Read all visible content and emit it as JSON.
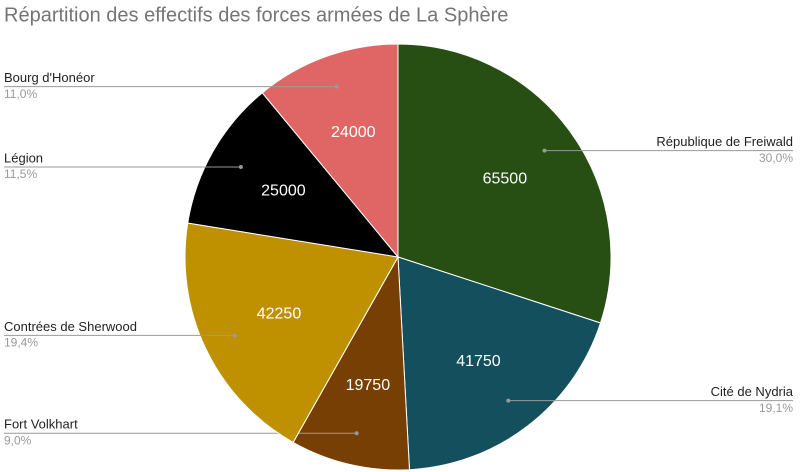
{
  "chart_data": {
    "type": "pie",
    "title": "Répartition des effectifs des forces armées de La Sphère",
    "categories": [
      "République de Freiwald",
      "Cité de Nydria",
      "Fort Volkhart",
      "Contrées de Sherwood",
      "Légion",
      "Bourg d'Honéor"
    ],
    "values": [
      65500,
      41750,
      19750,
      42250,
      25000,
      24000
    ],
    "percent_labels": [
      "30,0%",
      "19,1%",
      "9,0%",
      "19,4%",
      "11,5%",
      "11,0%"
    ],
    "colors": [
      "#274e13",
      "#134f5c",
      "#783f04",
      "#bf9000",
      "#000000",
      "#e06666"
    ]
  }
}
